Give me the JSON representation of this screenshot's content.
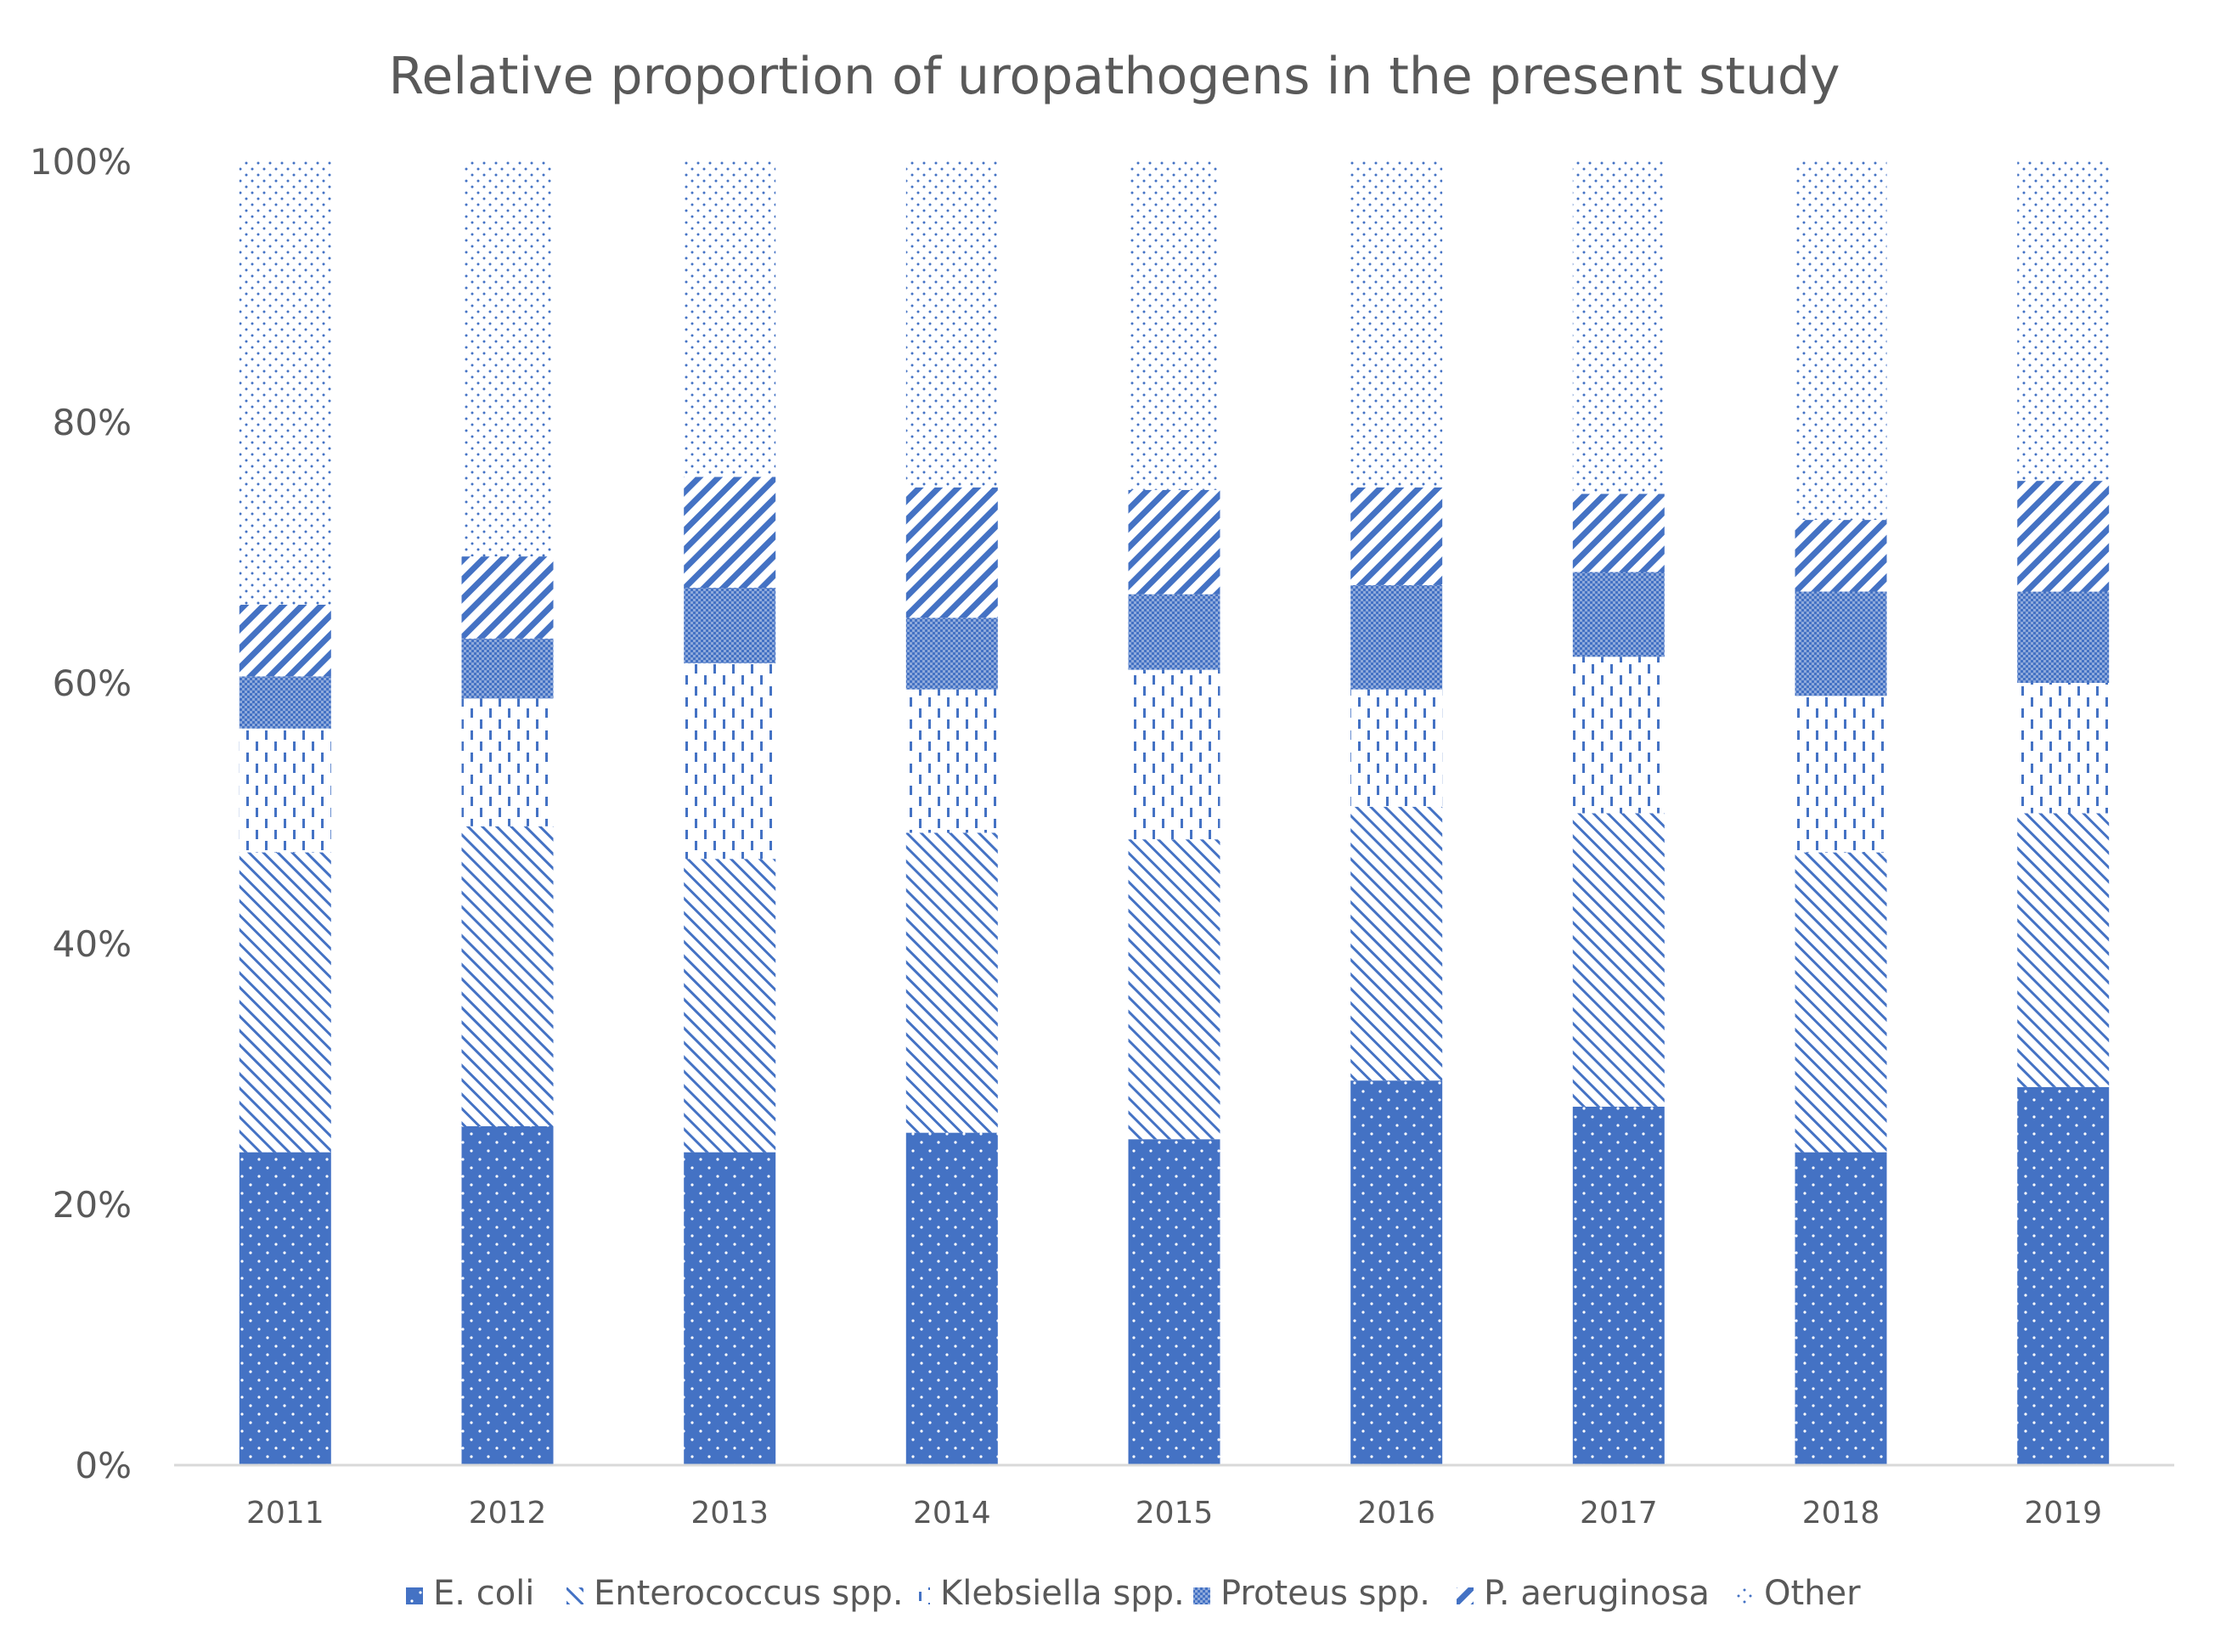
{
  "chart_data": {
    "type": "bar",
    "stacked": true,
    "percent": true,
    "title": "Relative proportion of uropathogens in the present study",
    "xlabel": "",
    "ylabel": "",
    "ylim": [
      0,
      100
    ],
    "yticks": [
      0,
      20,
      40,
      60,
      80,
      100
    ],
    "ytick_labels": [
      "0%",
      "20%",
      "40%",
      "60%",
      "80%",
      "100%"
    ],
    "categories": [
      "2011",
      "2012",
      "2013",
      "2014",
      "2015",
      "2016",
      "2017",
      "2018",
      "2019"
    ],
    "series": [
      {
        "name": "E. coli",
        "pattern": "dots-solid",
        "values": [
          24,
          26,
          24,
          25.5,
          25,
          29.5,
          27.5,
          24,
          29
        ]
      },
      {
        "name": "Enterococcus spp.",
        "pattern": "diagonal-light",
        "values": [
          23,
          23,
          22.5,
          23,
          23,
          21,
          22.5,
          23,
          21
        ]
      },
      {
        "name": "Klebsiella spp.",
        "pattern": "dashed-vertical",
        "values": [
          9.5,
          9.8,
          15,
          11,
          13,
          9,
          12,
          12,
          10
        ]
      },
      {
        "name": "Proteus spp.",
        "pattern": "checker",
        "values": [
          4,
          4.6,
          5.8,
          5.5,
          5.8,
          8,
          6.5,
          8,
          7
        ]
      },
      {
        "name": "P. aeruginosa",
        "pattern": "diagonal-bold",
        "values": [
          5.5,
          6.3,
          8.5,
          10,
          8,
          7.5,
          6,
          5.5,
          8.5
        ]
      },
      {
        "name": "Other",
        "pattern": "sparse-dots",
        "values": [
          34,
          30.3,
          24.2,
          25,
          25.2,
          25,
          25.5,
          27.5,
          24.5
        ]
      }
    ],
    "legend_position": "bottom",
    "grid": false
  },
  "colors": {
    "accent": "#4472C4",
    "text": "#595959",
    "axis": "#D9D9D9"
  }
}
